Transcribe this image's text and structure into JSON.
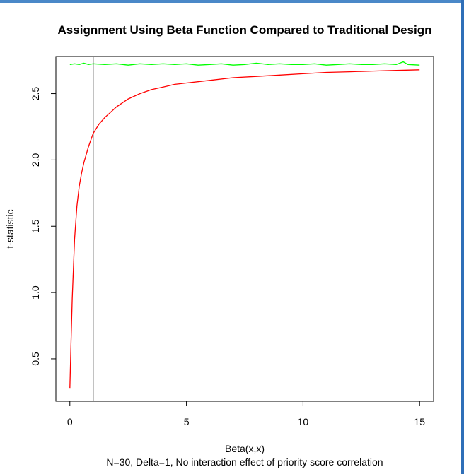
{
  "chart_data": {
    "type": "line",
    "title": "Assignment Using Beta Function Compared to Traditional Design",
    "xlabel": "Beta(x,x)",
    "ylabel": "t-statistic",
    "subtitle": "N=30, Delta=1, No interaction effect of priority score correlation",
    "xlim": [
      -0.6,
      15.6
    ],
    "ylim": [
      0.18,
      2.78
    ],
    "x_ticks": [
      0,
      5,
      10,
      15
    ],
    "x_tick_labels": [
      "0",
      "5",
      "10",
      "15"
    ],
    "y_ticks": [
      0.5,
      1.0,
      1.5,
      2.0,
      2.5
    ],
    "y_tick_labels": [
      "0.5",
      "1.0",
      "1.5",
      "2.0",
      "2.5"
    ],
    "grid": false,
    "vline_x": 1,
    "vline_color": "#000000",
    "series": [
      {
        "color": "#00ff00",
        "x": [
          0.0,
          0.2,
          0.4,
          0.6,
          0.8,
          1.0,
          1.5,
          2.0,
          2.5,
          3.0,
          3.5,
          4.0,
          4.5,
          5.0,
          5.5,
          6.0,
          6.5,
          7.0,
          7.5,
          8.0,
          8.5,
          9.0,
          9.5,
          10.0,
          10.5,
          11.0,
          11.5,
          12.0,
          12.5,
          13.0,
          13.5,
          14.0,
          14.3,
          14.5,
          15.0
        ],
        "y": [
          2.72,
          2.725,
          2.72,
          2.73,
          2.72,
          2.725,
          2.72,
          2.725,
          2.715,
          2.725,
          2.72,
          2.725,
          2.72,
          2.725,
          2.715,
          2.72,
          2.725,
          2.715,
          2.72,
          2.73,
          2.72,
          2.725,
          2.72,
          2.72,
          2.725,
          2.715,
          2.72,
          2.725,
          2.72,
          2.72,
          2.725,
          2.72,
          2.74,
          2.72,
          2.715
        ]
      },
      {
        "color": "#ff0000",
        "x": [
          0.0,
          0.05,
          0.1,
          0.2,
          0.3,
          0.4,
          0.5,
          0.6,
          0.8,
          1.0,
          1.25,
          1.5,
          1.75,
          2.0,
          2.5,
          3.0,
          3.5,
          4.0,
          4.5,
          5.0,
          6.0,
          7.0,
          8.0,
          9.0,
          10.0,
          11.0,
          12.0,
          13.0,
          14.0,
          15.0
        ],
        "y": [
          0.28,
          0.62,
          0.95,
          1.4,
          1.65,
          1.8,
          1.9,
          1.98,
          2.1,
          2.2,
          2.27,
          2.32,
          2.36,
          2.4,
          2.46,
          2.5,
          2.53,
          2.55,
          2.57,
          2.58,
          2.6,
          2.62,
          2.63,
          2.64,
          2.65,
          2.66,
          2.665,
          2.67,
          2.675,
          2.68
        ]
      }
    ]
  }
}
